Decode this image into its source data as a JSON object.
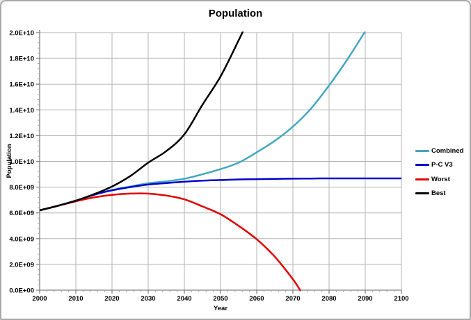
{
  "window": {
    "background": "#ffffff",
    "border_color": "#a8a8a8"
  },
  "chart_data": {
    "type": "line",
    "title": "Population",
    "xlabel": "Year",
    "ylabel": "Population",
    "xlim": [
      2000,
      2100
    ],
    "ylim": [
      0,
      20000000000.0
    ],
    "grid": true,
    "legend_position": "right",
    "x_tick_labels": [
      "2000",
      "2010",
      "2020",
      "2030",
      "2040",
      "2050",
      "2060",
      "2070",
      "2080",
      "2090",
      "2100"
    ],
    "y_tick_labels": [
      "0.0E+00",
      "2.0E+09",
      "4.0E+09",
      "6.0E+09",
      "8.0E+09",
      "1.0E+10",
      "1.2E+10",
      "1.4E+10",
      "1.6E+10",
      "1.8E+10",
      "2.0E+10"
    ],
    "x_minor_step_years": 2,
    "y_minor_step": 400000000.0,
    "grid_color": "#b3b3b3",
    "axis_color": "#808080",
    "series": [
      {
        "name": "Combined",
        "color": "#45A6C0",
        "x": [
          2000,
          2005,
          2010,
          2015,
          2020,
          2025,
          2030,
          2035,
          2040,
          2045,
          2050,
          2055,
          2060,
          2065,
          2070,
          2075,
          2080,
          2085,
          2090
        ],
        "y_billions": [
          6.2,
          6.55,
          6.95,
          7.4,
          7.78,
          8.05,
          8.3,
          8.45,
          8.65,
          9.0,
          9.4,
          9.9,
          10.7,
          11.6,
          12.7,
          14.1,
          15.9,
          17.9,
          20.1
        ]
      },
      {
        "name": "P-C V3",
        "color": "#0000CC",
        "x": [
          2000,
          2005,
          2010,
          2015,
          2020,
          2025,
          2030,
          2035,
          2040,
          2045,
          2050,
          2055,
          2060,
          2065,
          2070,
          2075,
          2080,
          2085,
          2090,
          2095,
          2100
        ],
        "y_billions": [
          6.2,
          6.55,
          6.95,
          7.4,
          7.75,
          8.0,
          8.2,
          8.32,
          8.42,
          8.5,
          8.55,
          8.6,
          8.62,
          8.64,
          8.66,
          8.67,
          8.68,
          8.68,
          8.68,
          8.68,
          8.68
        ]
      },
      {
        "name": "Worst",
        "color": "#E00000",
        "x": [
          2000,
          2005,
          2010,
          2015,
          2020,
          2025,
          2030,
          2035,
          2040,
          2045,
          2050,
          2055,
          2060,
          2065,
          2070,
          2072
        ],
        "y_billions": [
          6.2,
          6.55,
          6.9,
          7.2,
          7.4,
          7.5,
          7.5,
          7.35,
          7.05,
          6.5,
          5.9,
          5.0,
          3.95,
          2.6,
          0.85,
          0.0
        ]
      },
      {
        "name": "Best",
        "color": "#000000",
        "x": [
          2000,
          2005,
          2010,
          2015,
          2020,
          2025,
          2030,
          2035,
          2040,
          2045,
          2050,
          2055,
          2057
        ],
        "y_billions": [
          6.2,
          6.55,
          6.95,
          7.45,
          8.05,
          8.85,
          9.9,
          10.8,
          12.1,
          14.4,
          16.6,
          19.4,
          20.6
        ]
      }
    ]
  }
}
